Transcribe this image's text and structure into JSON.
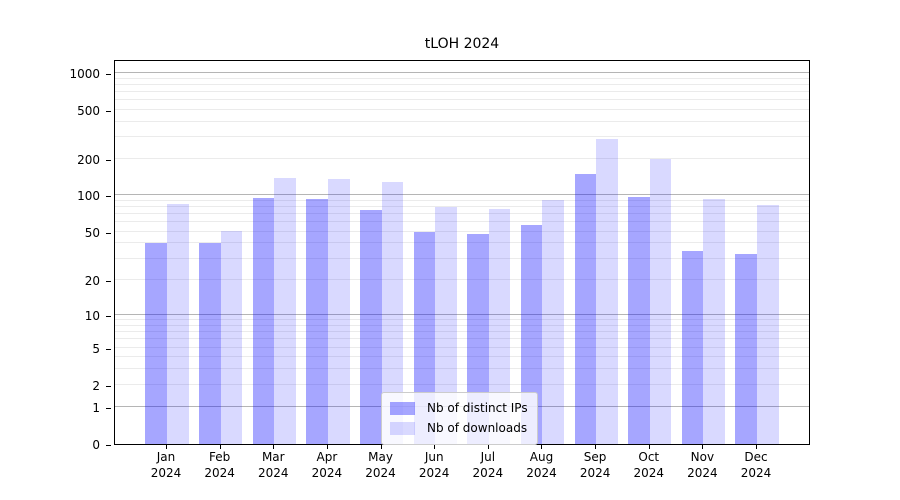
{
  "chart_data": {
    "type": "bar",
    "title": "tLOH 2024",
    "categories": [
      {
        "month": "Jan",
        "year": "2024"
      },
      {
        "month": "Feb",
        "year": "2024"
      },
      {
        "month": "Mar",
        "year": "2024"
      },
      {
        "month": "Apr",
        "year": "2024"
      },
      {
        "month": "May",
        "year": "2024"
      },
      {
        "month": "Jun",
        "year": "2024"
      },
      {
        "month": "Jul",
        "year": "2024"
      },
      {
        "month": "Aug",
        "year": "2024"
      },
      {
        "month": "Sep",
        "year": "2024"
      },
      {
        "month": "Oct",
        "year": "2024"
      },
      {
        "month": "Nov",
        "year": "2024"
      },
      {
        "month": "Dec",
        "year": "2024"
      }
    ],
    "series": [
      {
        "name": "Nb of distinct IPs",
        "color": "#0000ff",
        "alpha": 0.35,
        "values": [
          40,
          40,
          95,
          93,
          75,
          50,
          48,
          57,
          150,
          97,
          35,
          33
        ]
      },
      {
        "name": "Nb of downloads",
        "color": "#0000ff",
        "alpha": 0.15,
        "values": [
          85,
          51,
          140,
          135,
          128,
          80,
          77,
          91,
          290,
          200,
          93,
          83
        ]
      }
    ],
    "y_axis": {
      "scale": "symlog-like",
      "ticks": [
        0,
        1,
        2,
        5,
        10,
        20,
        50,
        100,
        200,
        500,
        1000
      ],
      "tick_labels": [
        "0",
        "1",
        "2",
        "5",
        "10",
        "20",
        "50",
        "100",
        "200",
        "500",
        "1000"
      ]
    },
    "grid": "on",
    "legend_position": "bottom-center",
    "colors": {
      "major_gridline": "#b5b5b5",
      "minor_gridline": "#ebebeb",
      "axis": "#000000",
      "background": "#ffffff"
    }
  }
}
